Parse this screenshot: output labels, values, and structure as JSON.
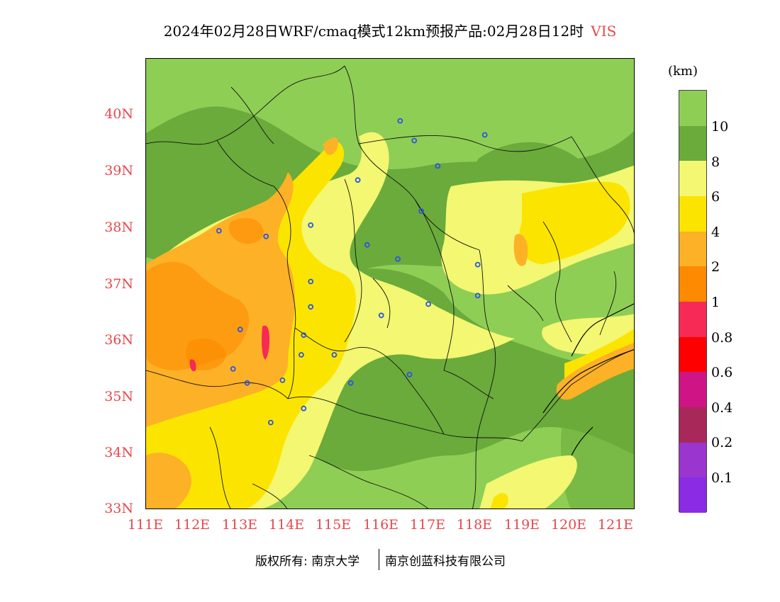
{
  "title": {
    "main": "2024年02月28日WRF/cmaq模式12km预报产品:02月28日12时",
    "variable": "VIS"
  },
  "axes": {
    "y_labels": [
      "40N",
      "39N",
      "38N",
      "37N",
      "36N",
      "35N",
      "34N",
      "33N"
    ],
    "x_labels": [
      "111E",
      "112E",
      "113E",
      "114E",
      "115E",
      "116E",
      "117E",
      "118E",
      "119E",
      "120E",
      "121E"
    ]
  },
  "colorbar": {
    "unit": "(km)",
    "labels": [
      "10",
      "8",
      "6",
      "4",
      "2",
      "1",
      "0.8",
      "0.6",
      "0.4",
      "0.2",
      "0.1"
    ],
    "colors": [
      "#8fce55",
      "#6aab3b",
      "#f3f771",
      "#fbe500",
      "#fdb127",
      "#fd8a00",
      "#f62a55",
      "#fe0000",
      "#cf1585",
      "#a8285a",
      "#9a36cf",
      "#8b2be4"
    ]
  },
  "footer": {
    "copyright": "版权所有: 南京大学",
    "company": "南京创蓝科技有限公司"
  },
  "map": {
    "lat_range": [
      33,
      41
    ],
    "lon_range": [
      111,
      121.4
    ],
    "stations": [
      [
        116.4,
        39.9
      ],
      [
        116.7,
        39.55
      ],
      [
        117.2,
        39.1
      ],
      [
        118.2,
        39.65
      ],
      [
        115.5,
        38.85
      ],
      [
        116.85,
        38.3
      ],
      [
        114.5,
        38.05
      ],
      [
        113.55,
        37.85
      ],
      [
        112.55,
        37.95
      ],
      [
        115.7,
        37.7
      ],
      [
        116.35,
        37.45
      ],
      [
        118.05,
        37.35
      ],
      [
        114.5,
        37.05
      ],
      [
        118.05,
        36.8
      ],
      [
        117.0,
        36.65
      ],
      [
        114.5,
        36.6
      ],
      [
        116.0,
        36.45
      ],
      [
        113.0,
        36.2
      ],
      [
        114.35,
        36.1
      ],
      [
        114.3,
        35.75
      ],
      [
        115.0,
        35.75
      ],
      [
        112.85,
        35.5
      ],
      [
        113.9,
        35.3
      ],
      [
        115.35,
        35.25
      ],
      [
        113.15,
        35.25
      ],
      [
        116.6,
        35.4
      ],
      [
        114.35,
        34.8
      ],
      [
        113.65,
        34.55
      ]
    ]
  }
}
